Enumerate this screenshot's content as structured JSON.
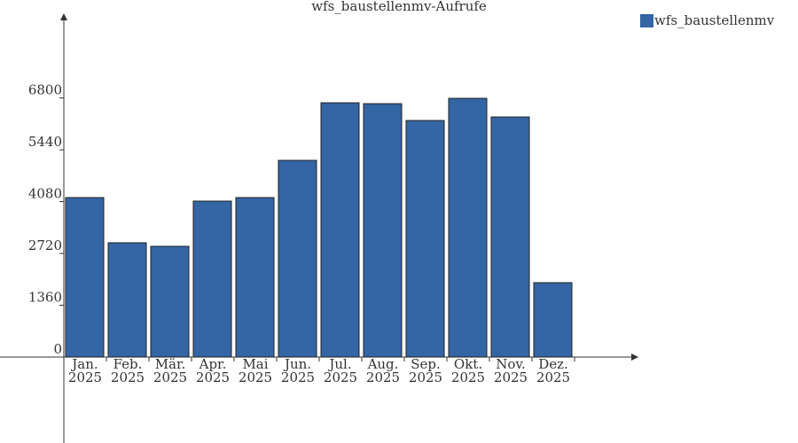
{
  "chart_data": {
    "type": "bar",
    "title": "wfs_baustellenmv-Aufrufe",
    "categories": [
      "Jan.\n2025",
      "Feb.\n2025",
      "Mär.\n2025",
      "Apr.\n2025",
      "Mai\n2025",
      "Jun.\n2025",
      "Jul.\n2025",
      "Aug.\n2025",
      "Sep.\n2025",
      "Okt.\n2025",
      "Nov.\n2025",
      "Dez.\n2025"
    ],
    "series": [
      {
        "name": "wfs_baustellenmv",
        "color": "#3465a4",
        "values": [
          4186,
          3000,
          2907,
          4093,
          4186,
          5163,
          6674,
          6651,
          6209,
          6791,
          6302,
          1953
        ]
      }
    ],
    "ylim": [
      -2256,
      9023
    ],
    "yticks": [
      0,
      1360,
      2720,
      4080,
      5440,
      6800
    ],
    "legend": "top-right"
  }
}
